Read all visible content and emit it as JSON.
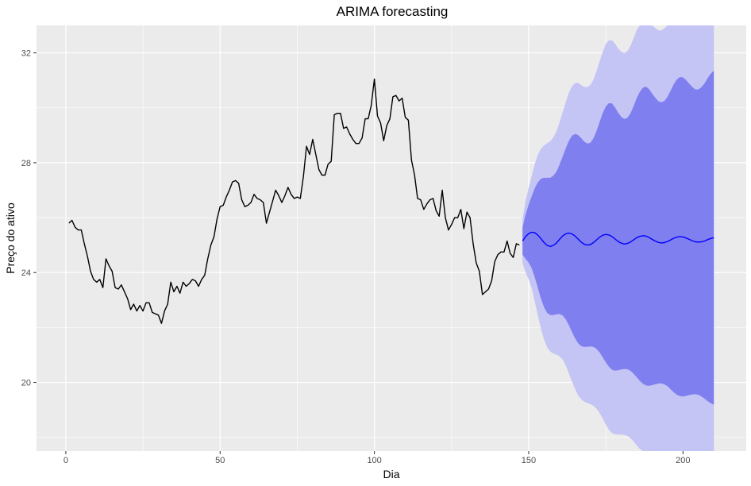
{
  "chart_data": {
    "type": "line",
    "title": "ARIMA forecasting",
    "xlabel": "Dia",
    "ylabel": "Preço do ativo",
    "xlim": [
      -9.5,
      220.5
    ],
    "ylim": [
      17.5,
      33.0
    ],
    "x_ticks": [
      0,
      50,
      100,
      150,
      200
    ],
    "y_ticks": [
      20,
      24,
      28,
      32
    ],
    "grid": true,
    "legend": "none",
    "colors": {
      "panel": "#ebebeb",
      "grid": "#ffffff",
      "history_line": "#000000",
      "forecast_line": "#0000ff",
      "band_80": "#7f7fef",
      "band_95": "#c4c4f5"
    },
    "series": [
      {
        "role": "history",
        "x": [
          1,
          2,
          3,
          4,
          5,
          6,
          7,
          8,
          9,
          10,
          11,
          12,
          13,
          14,
          15,
          16,
          17,
          18,
          19,
          20,
          21,
          22,
          23,
          24,
          25,
          26,
          27,
          28,
          29,
          30,
          31,
          32,
          33,
          34,
          35,
          36,
          37,
          38,
          39,
          40,
          41,
          42,
          43,
          44,
          45,
          46,
          47,
          48,
          49,
          50,
          51,
          52,
          53,
          54,
          55,
          56,
          57,
          58,
          59,
          60,
          61,
          62,
          63,
          64,
          65,
          66,
          67,
          68,
          69,
          70,
          71,
          72,
          73,
          74,
          75,
          76,
          77,
          78,
          79,
          80,
          81,
          82,
          83,
          84,
          85,
          86,
          87,
          88,
          89,
          90,
          91,
          92,
          93,
          94,
          95,
          96,
          97,
          98,
          99,
          100,
          101,
          102,
          103,
          104,
          105,
          106,
          107,
          108,
          109,
          110,
          111,
          112,
          113,
          114,
          115,
          116,
          117,
          118,
          119,
          120,
          121,
          122,
          123,
          124,
          125,
          126,
          127,
          128,
          129,
          130,
          131,
          132,
          133,
          134,
          135,
          136,
          137,
          138,
          139,
          140,
          141,
          142,
          143,
          144,
          145,
          146,
          147
        ],
        "y": [
          25.8,
          25.9,
          25.65,
          25.55,
          25.55,
          25.05,
          24.6,
          24.05,
          23.75,
          23.65,
          23.75,
          23.45,
          24.5,
          24.25,
          24.05,
          23.45,
          23.4,
          23.55,
          23.3,
          23.05,
          22.65,
          22.85,
          22.6,
          22.8,
          22.6,
          22.9,
          22.9,
          22.55,
          22.5,
          22.45,
          22.15,
          22.6,
          22.85,
          23.65,
          23.3,
          23.5,
          23.25,
          23.65,
          23.5,
          23.6,
          23.75,
          23.7,
          23.5,
          23.75,
          23.9,
          24.5,
          25.0,
          25.3,
          25.95,
          26.4,
          26.45,
          26.75,
          27.0,
          27.3,
          27.35,
          27.25,
          26.65,
          26.4,
          26.45,
          26.55,
          26.85,
          26.7,
          26.65,
          26.55,
          25.8,
          26.2,
          26.6,
          27.0,
          26.8,
          26.55,
          26.8,
          27.1,
          26.85,
          26.7,
          26.75,
          26.7,
          27.5,
          28.6,
          28.3,
          28.85,
          28.3,
          27.75,
          27.55,
          27.55,
          27.95,
          28.05,
          29.75,
          29.8,
          29.8,
          29.25,
          29.3,
          29.05,
          28.85,
          28.7,
          28.7,
          28.9,
          29.6,
          29.6,
          30.1,
          31.05,
          29.7,
          29.45,
          28.8,
          29.35,
          29.6,
          30.4,
          30.45,
          30.25,
          30.35,
          29.65,
          29.55,
          28.1,
          27.55,
          26.7,
          26.65,
          26.3,
          26.5,
          26.65,
          26.7,
          26.25,
          26.05,
          27.0,
          26.0,
          25.55,
          25.75,
          26.0,
          26.0,
          26.3,
          25.6,
          26.2,
          26.0,
          25.05,
          24.35,
          24.05,
          23.2,
          23.3,
          23.4,
          23.7,
          24.4,
          24.65,
          24.75,
          24.75,
          25.15,
          24.7,
          24.55,
          25.05,
          25.0
        ]
      },
      {
        "role": "forecast",
        "x": [
          148,
          149,
          150,
          151,
          152,
          153,
          154,
          155,
          156,
          157,
          158,
          159,
          160,
          161,
          162,
          163,
          164,
          165,
          166,
          167,
          168,
          169,
          170,
          171,
          172,
          173,
          174,
          175,
          176,
          177,
          178,
          179,
          180,
          181,
          182,
          183,
          184,
          185,
          186,
          187,
          188,
          189,
          190,
          191,
          192,
          193,
          194,
          195,
          196,
          197,
          198,
          199,
          200,
          201,
          202,
          203,
          204,
          205,
          206,
          207,
          208,
          209,
          210
        ],
        "y": [
          25.15,
          25.31,
          25.42,
          25.47,
          25.45,
          25.36,
          25.23,
          25.09,
          24.99,
          24.95,
          24.99,
          25.08,
          25.21,
          25.33,
          25.41,
          25.44,
          25.41,
          25.33,
          25.22,
          25.11,
          25.03,
          25.0,
          25.02,
          25.09,
          25.19,
          25.29,
          25.36,
          25.39,
          25.37,
          25.31,
          25.22,
          25.13,
          25.07,
          25.04,
          25.06,
          25.11,
          25.19,
          25.27,
          25.32,
          25.34,
          25.33,
          25.28,
          25.21,
          25.15,
          25.1,
          25.08,
          25.09,
          25.13,
          25.19,
          25.25,
          25.29,
          25.31,
          25.3,
          25.26,
          25.21,
          25.16,
          25.12,
          25.11,
          25.12,
          25.15,
          25.2,
          25.24,
          25.27
        ],
        "lo80": [
          24.65,
          24.5,
          24.36,
          24.15,
          23.82,
          23.43,
          23.04,
          22.73,
          22.53,
          22.45,
          22.45,
          22.48,
          22.49,
          22.44,
          22.3,
          22.09,
          21.84,
          21.61,
          21.43,
          21.32,
          21.29,
          21.3,
          21.31,
          21.29,
          21.22,
          21.09,
          20.91,
          20.73,
          20.57,
          20.46,
          20.43,
          20.44,
          20.47,
          20.49,
          20.48,
          20.42,
          20.32,
          20.19,
          20.06,
          19.95,
          19.89,
          19.88,
          19.9,
          19.93,
          19.96,
          19.96,
          19.93,
          19.86,
          19.75,
          19.64,
          19.55,
          19.5,
          19.49,
          19.51,
          19.54,
          19.56,
          19.57,
          19.55,
          19.49,
          19.41,
          19.32,
          19.24,
          19.19
        ],
        "hi80": [
          25.65,
          26.12,
          26.48,
          26.79,
          27.08,
          27.29,
          27.42,
          27.45,
          27.45,
          27.45,
          27.53,
          27.68,
          27.93,
          28.22,
          28.52,
          28.79,
          28.98,
          29.05,
          29.01,
          28.9,
          28.77,
          28.7,
          28.73,
          28.89,
          29.16,
          29.49,
          29.81,
          30.05,
          30.17,
          30.16,
          30.01,
          29.82,
          29.67,
          29.59,
          29.64,
          29.8,
          30.06,
          30.35,
          30.58,
          30.73,
          30.77,
          30.68,
          30.52,
          30.37,
          30.24,
          30.2,
          30.25,
          30.4,
          30.63,
          30.86,
          31.03,
          31.12,
          31.11,
          31.01,
          30.88,
          30.76,
          30.67,
          30.67,
          30.75,
          30.89,
          31.08,
          31.24,
          31.35
        ],
        "lo95": [
          24.35,
          24.0,
          23.75,
          23.41,
          22.94,
          22.43,
          21.95,
          21.55,
          21.27,
          21.12,
          21.05,
          21.01,
          20.95,
          20.83,
          20.62,
          20.34,
          20.04,
          19.76,
          19.53,
          19.39,
          19.3,
          19.25,
          19.21,
          19.15,
          19.04,
          18.88,
          18.68,
          18.46,
          18.28,
          18.16,
          18.11,
          18.1,
          18.1,
          18.09,
          18.05,
          17.97,
          17.85,
          17.71,
          17.58,
          17.47,
          17.41,
          17.39,
          17.39,
          17.39,
          17.38,
          17.34,
          17.28,
          17.18,
          17.06,
          16.95,
          16.86,
          16.81,
          16.79,
          16.79,
          16.79,
          16.78,
          16.75,
          16.68,
          16.59,
          16.49,
          16.39,
          16.31,
          16.25
        ],
        "hi95": [
          25.95,
          26.62,
          27.09,
          27.53,
          27.96,
          28.29,
          28.51,
          28.63,
          28.71,
          28.78,
          28.93,
          29.15,
          29.47,
          29.83,
          30.2,
          30.54,
          30.78,
          30.9,
          30.91,
          30.83,
          30.76,
          30.75,
          30.83,
          31.03,
          31.34,
          31.7,
          32.04,
          32.32,
          32.46,
          32.46,
          32.33,
          32.16,
          32.04,
          31.99,
          32.07,
          32.25,
          32.53,
          32.83,
          33.06,
          33.21,
          33.25,
          33.17,
          33.03,
          32.91,
          32.82,
          32.82,
          32.9,
          33.08,
          33.32,
          33.55,
          33.72,
          33.81,
          33.81,
          33.73,
          33.63,
          33.54,
          33.49,
          33.54,
          33.65,
          33.81,
          34.01,
          34.17,
          34.29
        ]
      }
    ]
  }
}
